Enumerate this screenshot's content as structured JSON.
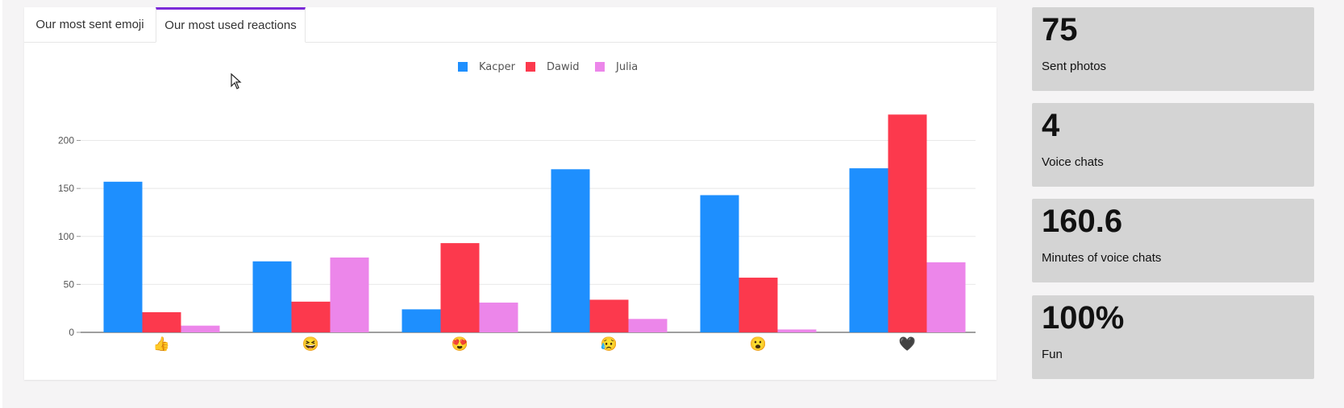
{
  "tabs": [
    {
      "label": "Our most sent emoji",
      "active": false
    },
    {
      "label": "Our most used reactions",
      "active": true
    }
  ],
  "colors": {
    "accent": "#7b2ad8",
    "kacper": "#1e8ffe",
    "dawid": "#fc394d",
    "julia": "#ec86ea",
    "stat_bg": "#d4d4d4"
  },
  "chart_data": {
    "type": "bar",
    "categories": [
      "👍",
      "😆",
      "😍",
      "😥",
      "😮",
      "🖤"
    ],
    "category_icons": [
      "thumbs-up-icon",
      "laughing-face-icon",
      "heart-eyes-face-icon",
      "sad-face-icon",
      "surprised-face-icon",
      "black-heart-icon"
    ],
    "series": [
      {
        "name": "Kacper",
        "color": "#1e8ffe",
        "values": [
          157,
          74,
          24,
          170,
          143,
          171
        ]
      },
      {
        "name": "Dawid",
        "color": "#fc394d",
        "values": [
          21,
          32,
          93,
          34,
          57,
          227
        ]
      },
      {
        "name": "Julia",
        "color": "#ec86ea",
        "values": [
          7,
          78,
          31,
          14,
          3,
          73
        ]
      }
    ],
    "yticks": [
      0,
      50,
      100,
      150,
      200
    ],
    "ylim": [
      0,
      240
    ],
    "grid": true,
    "legend": "top-center",
    "title": "",
    "xlabel": "",
    "ylabel": ""
  },
  "stats": [
    {
      "value": "75",
      "label": "Sent photos"
    },
    {
      "value": "4",
      "label": "Voice chats"
    },
    {
      "value": "160.6",
      "label": "Minutes of voice chats"
    },
    {
      "value": "100%",
      "label": "Fun"
    }
  ]
}
